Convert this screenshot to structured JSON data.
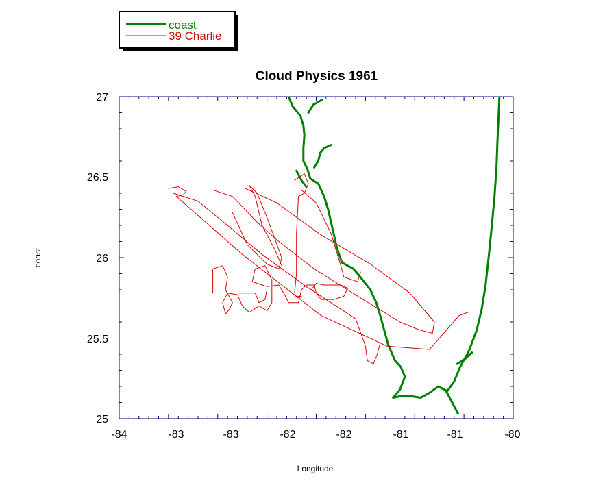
{
  "chart_data": {
    "type": "line",
    "title": "Cloud Physics 1961",
    "xlabel": "Longitude",
    "ylabel": "coast",
    "xlim": [
      -84,
      -80
    ],
    "ylim": [
      25,
      27
    ],
    "x_tick_labels": [
      "-84",
      "-83",
      "-83",
      "-82",
      "-82",
      "-81",
      "-81",
      "-80"
    ],
    "y_tick_labels": [
      "25",
      "25.5",
      "26",
      "26.5",
      "27"
    ],
    "legend_position": "top-left",
    "grid": false,
    "series": [
      {
        "name": "coast",
        "color": "#008000",
        "segments": [
          [
            [
              -82.28,
              27.0
            ],
            [
              -82.24,
              26.94
            ],
            [
              -82.16,
              26.88
            ],
            [
              -82.13,
              26.82
            ],
            [
              -82.12,
              26.76
            ],
            [
              -82.13,
              26.68
            ],
            [
              -82.13,
              26.6
            ],
            [
              -82.09,
              26.55
            ],
            [
              -82.06,
              26.49
            ],
            [
              -81.98,
              26.46
            ],
            [
              -81.92,
              26.38
            ],
            [
              -81.88,
              26.3
            ],
            [
              -81.85,
              26.22
            ],
            [
              -81.82,
              26.14
            ],
            [
              -81.79,
              26.06
            ],
            [
              -81.74,
              25.97
            ],
            [
              -81.62,
              25.93
            ],
            [
              -81.54,
              25.87
            ],
            [
              -81.45,
              25.8
            ],
            [
              -81.39,
              25.72
            ],
            [
              -81.35,
              25.64
            ],
            [
              -81.31,
              25.55
            ],
            [
              -81.27,
              25.46
            ],
            [
              -81.2,
              25.36
            ],
            [
              -81.14,
              25.32
            ],
            [
              -81.1,
              25.26
            ],
            [
              -81.15,
              25.18
            ],
            [
              -81.22,
              25.13
            ],
            [
              -81.14,
              25.14
            ],
            [
              -81.04,
              25.14
            ],
            [
              -80.94,
              25.13
            ],
            [
              -80.85,
              25.16
            ],
            [
              -80.76,
              25.2
            ],
            [
              -80.67,
              25.17
            ],
            [
              -80.6,
              25.23
            ],
            [
              -80.54,
              25.32
            ],
            [
              -80.45,
              25.42
            ],
            [
              -80.37,
              25.55
            ],
            [
              -80.32,
              25.68
            ],
            [
              -80.28,
              25.83
            ],
            [
              -80.25,
              26.0
            ],
            [
              -80.22,
              26.18
            ],
            [
              -80.19,
              26.38
            ],
            [
              -80.17,
              26.56
            ],
            [
              -80.16,
              26.72
            ],
            [
              -80.15,
              26.86
            ],
            [
              -80.14,
              27.0
            ]
          ],
          [
            [
              -81.94,
              26.98
            ],
            [
              -82.03,
              26.95
            ],
            [
              -82.08,
              26.9
            ]
          ],
          [
            [
              -82.02,
              26.56
            ],
            [
              -81.98,
              26.6
            ],
            [
              -81.96,
              26.65
            ],
            [
              -81.92,
              26.68
            ],
            [
              -81.85,
              26.7
            ]
          ],
          [
            [
              -82.2,
              26.54
            ],
            [
              -82.15,
              26.48
            ],
            [
              -82.1,
              26.44
            ]
          ],
          [
            [
              -80.57,
              25.34
            ],
            [
              -80.49,
              25.37
            ],
            [
              -80.42,
              25.41
            ]
          ],
          [
            [
              -80.68,
              25.17
            ],
            [
              -80.62,
              25.1
            ],
            [
              -80.56,
              25.03
            ]
          ]
        ]
      },
      {
        "name": "39 Charlie",
        "color": "#d80000",
        "segments": [
          [
            [
              -83.5,
              26.43
            ],
            [
              -83.4,
              26.44
            ],
            [
              -83.32,
              26.41
            ],
            [
              -83.35,
              26.39
            ],
            [
              -83.42,
              26.38
            ],
            [
              -82.75,
              26.02
            ],
            [
              -81.95,
              25.64
            ],
            [
              -81.28,
              25.45
            ],
            [
              -80.85,
              25.43
            ],
            [
              -80.72,
              25.52
            ],
            [
              -80.55,
              25.64
            ],
            [
              -80.46,
              25.66
            ]
          ],
          [
            [
              -83.45,
              26.4
            ],
            [
              -83.2,
              26.35
            ],
            [
              -82.9,
              26.2
            ],
            [
              -82.55,
              26.02
            ],
            [
              -82.1,
              25.82
            ],
            [
              -81.6,
              25.62
            ],
            [
              -81.5,
              25.45
            ],
            [
              -81.48,
              25.36
            ],
            [
              -81.42,
              25.34
            ],
            [
              -81.38,
              25.4
            ],
            [
              -81.35,
              25.47
            ]
          ],
          [
            [
              -83.05,
              26.42
            ],
            [
              -82.85,
              26.38
            ],
            [
              -82.6,
              26.22
            ],
            [
              -82.38,
              26.1
            ],
            [
              -82.02,
              25.93
            ],
            [
              -81.55,
              25.75
            ],
            [
              -81.15,
              25.6
            ],
            [
              -80.95,
              25.55
            ],
            [
              -80.82,
              25.53
            ],
            [
              -80.8,
              25.6
            ],
            [
              -81.05,
              25.78
            ],
            [
              -81.45,
              25.96
            ],
            [
              -81.95,
              26.14
            ],
            [
              -82.4,
              26.34
            ],
            [
              -82.72,
              26.43
            ]
          ],
          [
            [
              -82.85,
              26.28
            ],
            [
              -82.7,
              26.08
            ],
            [
              -82.5,
              25.96
            ],
            [
              -82.38,
              25.93
            ],
            [
              -82.35,
              26.0
            ],
            [
              -82.5,
              26.25
            ],
            [
              -82.6,
              26.4
            ],
            [
              -82.68,
              26.45
            ],
            [
              -82.62,
              26.38
            ],
            [
              -82.55,
              26.2
            ],
            [
              -82.42,
              26.05
            ],
            [
              -82.35,
              25.95
            ]
          ],
          [
            [
              -82.22,
              26.48
            ],
            [
              -82.12,
              26.52
            ],
            [
              -82.08,
              26.46
            ],
            [
              -82.12,
              26.4
            ],
            [
              -82.18,
              26.38
            ],
            [
              -82.2,
              26.15
            ],
            [
              -82.2,
              25.9
            ],
            [
              -82.22,
              25.78
            ]
          ],
          [
            [
              -82.15,
              26.42
            ],
            [
              -82.0,
              26.34
            ],
            [
              -81.85,
              26.15
            ],
            [
              -81.75,
              25.95
            ],
            [
              -81.72,
              25.88
            ],
            [
              -81.58,
              25.85
            ],
            [
              -81.55,
              25.91
            ]
          ],
          [
            [
              -83.05,
              25.78
            ],
            [
              -83.05,
              25.93
            ],
            [
              -82.95,
              25.95
            ],
            [
              -82.9,
              25.88
            ],
            [
              -82.92,
              25.8
            ],
            [
              -82.85,
              25.72
            ],
            [
              -82.88,
              25.68
            ],
            [
              -82.92,
              25.65
            ],
            [
              -82.95,
              25.72
            ],
            [
              -82.9,
              25.78
            ],
            [
              -82.8,
              25.77
            ],
            [
              -82.75,
              25.7
            ],
            [
              -82.68,
              25.66
            ],
            [
              -82.58,
              25.7
            ],
            [
              -82.5,
              25.67
            ],
            [
              -82.45,
              25.72
            ],
            [
              -82.45,
              25.86
            ],
            [
              -82.52,
              25.95
            ],
            [
              -82.62,
              25.93
            ],
            [
              -82.65,
              25.85
            ],
            [
              -82.5,
              25.82
            ],
            [
              -82.38,
              25.83
            ],
            [
              -82.32,
              25.77
            ],
            [
              -82.28,
              25.72
            ],
            [
              -82.18,
              25.72
            ],
            [
              -82.15,
              25.8
            ],
            [
              -82.1,
              25.83
            ],
            [
              -82.02,
              25.83
            ],
            [
              -82.0,
              25.78
            ],
            [
              -81.95,
              25.74
            ],
            [
              -81.82,
              25.74
            ],
            [
              -81.72,
              25.76
            ],
            [
              -81.68,
              25.81
            ],
            [
              -81.75,
              25.83
            ],
            [
              -81.92,
              25.83
            ],
            [
              -82.0,
              25.84
            ],
            [
              -82.05,
              25.8
            ]
          ],
          [
            [
              -82.78,
              25.78
            ],
            [
              -82.62,
              25.78
            ],
            [
              -82.58,
              25.72
            ],
            [
              -82.52,
              25.74
            ],
            [
              -82.5,
              25.8
            ]
          ],
          [
            [
              -82.25,
              25.78
            ],
            [
              -82.2,
              25.76
            ],
            [
              -82.15,
              25.76
            ]
          ]
        ]
      }
    ]
  }
}
